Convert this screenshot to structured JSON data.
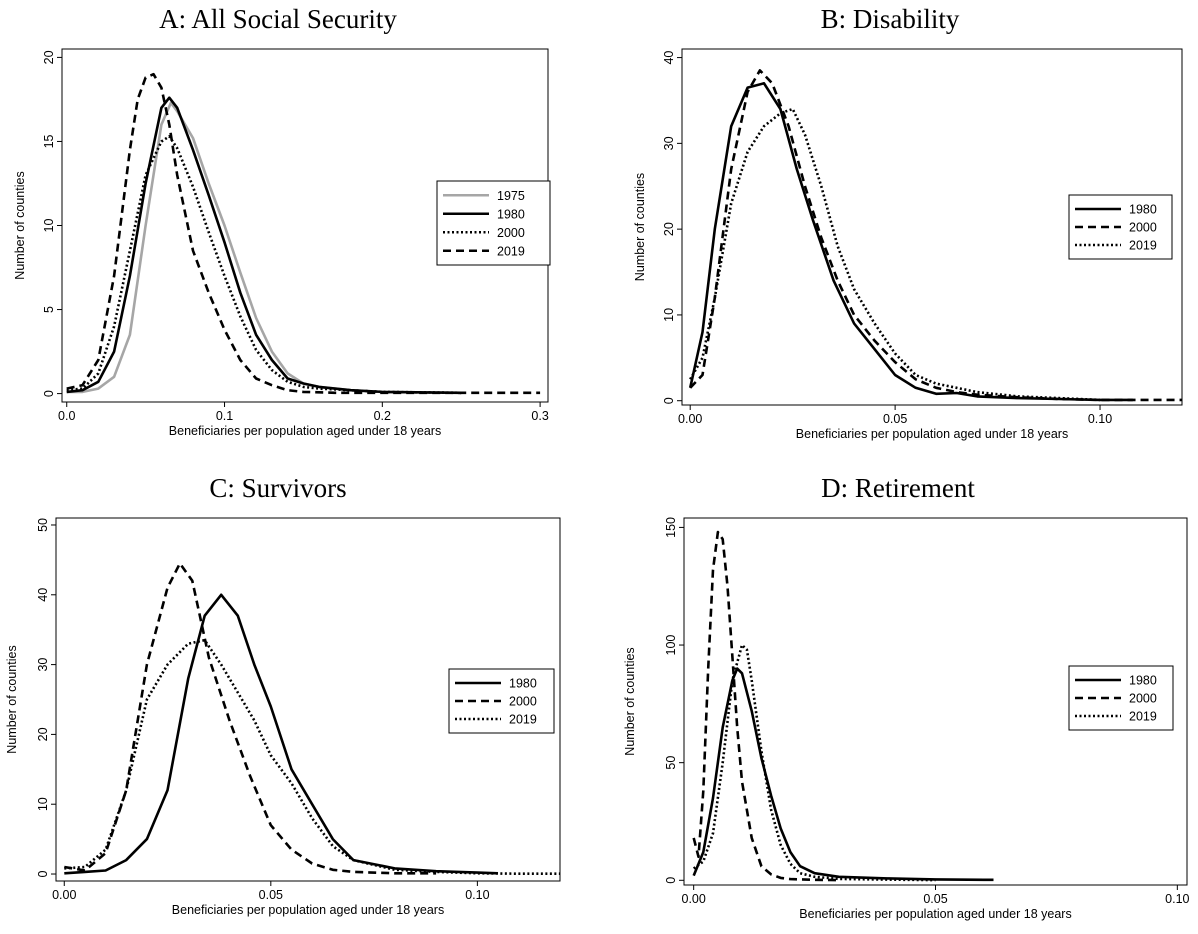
{
  "chart_data": [
    {
      "type": "line",
      "title": "A: All Social Security",
      "xlabel": "Beneficiaries per population aged under 18 years",
      "ylabel": "Number of counties",
      "xlim": [
        -0.003,
        0.305
      ],
      "ylim": [
        -0.5,
        20.5
      ],
      "xticks": [
        0,
        0.1,
        0.2,
        0.3
      ],
      "xtick_labels": [
        "0.0",
        "0.1",
        "0.2",
        "0.3"
      ],
      "yticks": [
        0,
        5,
        10,
        15,
        20
      ],
      "ytick_labels": [
        "0",
        "5",
        "10",
        "15",
        "20"
      ],
      "grid": false,
      "legend": "right",
      "series": [
        {
          "name": "1975",
          "color": "#a6a6a6",
          "dash": "solid",
          "x": [
            0.0,
            0.01,
            0.02,
            0.03,
            0.04,
            0.05,
            0.06,
            0.066,
            0.07,
            0.08,
            0.09,
            0.1,
            0.11,
            0.12,
            0.13,
            0.14,
            0.15,
            0.16,
            0.18,
            0.2,
            0.25
          ],
          "y": [
            0.1,
            0.1,
            0.3,
            1.0,
            3.5,
            10.0,
            16.0,
            17.3,
            16.8,
            15.2,
            12.5,
            10.0,
            7.2,
            4.5,
            2.5,
            1.2,
            0.6,
            0.4,
            0.2,
            0.1,
            0.05
          ]
        },
        {
          "name": "1980",
          "color": "#000000",
          "dash": "solid",
          "x": [
            0.0,
            0.01,
            0.02,
            0.03,
            0.04,
            0.05,
            0.06,
            0.065,
            0.07,
            0.08,
            0.09,
            0.1,
            0.11,
            0.12,
            0.13,
            0.14,
            0.15,
            0.16,
            0.18,
            0.2,
            0.25
          ],
          "y": [
            0.1,
            0.2,
            0.7,
            2.5,
            7.0,
            12.5,
            17.0,
            17.6,
            17.0,
            14.5,
            11.8,
            9.0,
            6.0,
            3.5,
            2.0,
            0.9,
            0.6,
            0.4,
            0.2,
            0.1,
            0.05
          ]
        },
        {
          "name": "2000",
          "color": "#000000",
          "dash": "dotted",
          "x": [
            0.0,
            0.01,
            0.02,
            0.03,
            0.04,
            0.05,
            0.06,
            0.065,
            0.07,
            0.08,
            0.09,
            0.1,
            0.11,
            0.12,
            0.13,
            0.14,
            0.15,
            0.16,
            0.18,
            0.2,
            0.25
          ],
          "y": [
            0.2,
            0.3,
            1.2,
            4.0,
            8.5,
            13.0,
            15.0,
            15.3,
            14.6,
            12.3,
            9.6,
            7.0,
            4.6,
            2.6,
            1.4,
            0.7,
            0.4,
            0.3,
            0.2,
            0.1,
            0.05
          ]
        },
        {
          "name": "2019",
          "color": "#000000",
          "dash": "dashed",
          "x": [
            0.0,
            0.01,
            0.02,
            0.03,
            0.04,
            0.045,
            0.05,
            0.055,
            0.06,
            0.065,
            0.07,
            0.08,
            0.09,
            0.1,
            0.11,
            0.12,
            0.13,
            0.14,
            0.15,
            0.17,
            0.2,
            0.25,
            0.3
          ],
          "y": [
            0.3,
            0.5,
            2.0,
            7.0,
            14.5,
            17.5,
            18.8,
            19.0,
            18.2,
            16.0,
            13.0,
            8.5,
            6.0,
            3.8,
            2.0,
            0.9,
            0.5,
            0.2,
            0.1,
            0.05,
            0.05,
            0.05,
            0.05
          ]
        }
      ]
    },
    {
      "type": "line",
      "title": "B: Disability",
      "xlabel": "Beneficiaries per population aged under 18 years",
      "ylabel": "Number of counties",
      "xlim": [
        -0.002,
        0.12
      ],
      "ylim": [
        -0.5,
        41
      ],
      "xticks": [
        0,
        0.05,
        0.1
      ],
      "xtick_labels": [
        "0.00",
        "0.05",
        "0.10"
      ],
      "yticks": [
        0,
        10,
        20,
        30,
        40
      ],
      "ytick_labels": [
        "0",
        "10",
        "20",
        "30",
        "40"
      ],
      "grid": false,
      "legend": "right",
      "series": [
        {
          "name": "1980",
          "color": "#000000",
          "dash": "solid",
          "x": [
            0.0,
            0.003,
            0.006,
            0.01,
            0.014,
            0.018,
            0.022,
            0.026,
            0.03,
            0.035,
            0.04,
            0.045,
            0.05,
            0.055,
            0.06,
            0.065,
            0.07,
            0.08,
            0.09,
            0.1,
            0.108
          ],
          "y": [
            1.5,
            8.0,
            20.0,
            32.0,
            36.5,
            37.0,
            34.0,
            27.0,
            21.0,
            14.0,
            9.0,
            6.0,
            3.0,
            1.5,
            0.8,
            0.9,
            0.5,
            0.3,
            0.2,
            0.1,
            0.1
          ]
        },
        {
          "name": "2000",
          "color": "#000000",
          "dash": "dashed",
          "x": [
            0.0,
            0.003,
            0.006,
            0.01,
            0.014,
            0.017,
            0.02,
            0.024,
            0.028,
            0.032,
            0.036,
            0.04,
            0.045,
            0.05,
            0.055,
            0.06,
            0.065,
            0.07,
            0.08,
            0.09,
            0.1,
            0.11,
            0.12
          ],
          "y": [
            1.5,
            3.0,
            12.0,
            27.0,
            36.0,
            38.5,
            37.0,
            32.0,
            25.0,
            19.0,
            14.0,
            10.0,
            7.0,
            4.5,
            2.5,
            1.5,
            1.0,
            0.7,
            0.4,
            0.2,
            0.1,
            0.1,
            0.1
          ]
        },
        {
          "name": "2019",
          "color": "#000000",
          "dash": "dotted",
          "x": [
            0.0,
            0.003,
            0.006,
            0.01,
            0.014,
            0.018,
            0.022,
            0.025,
            0.028,
            0.032,
            0.036,
            0.04,
            0.045,
            0.05,
            0.055,
            0.06,
            0.065,
            0.07,
            0.08,
            0.09,
            0.1
          ],
          "y": [
            2.5,
            5.0,
            12.0,
            23.0,
            29.0,
            32.0,
            33.5,
            34.0,
            31.0,
            25.0,
            18.0,
            13.0,
            9.0,
            5.5,
            3.0,
            2.0,
            1.5,
            1.0,
            0.5,
            0.3,
            0.1
          ]
        }
      ]
    },
    {
      "type": "line",
      "title": "C: Survivors",
      "xlabel": "Beneficiaries per population aged under 18 years",
      "ylabel": "Number of counties",
      "xlim": [
        -0.002,
        0.12
      ],
      "ylim": [
        -1,
        51
      ],
      "xticks": [
        0,
        0.05,
        0.1
      ],
      "xtick_labels": [
        "0.00",
        "0.05",
        "0.10"
      ],
      "yticks": [
        0,
        10,
        20,
        30,
        40,
        50
      ],
      "ytick_labels": [
        "0",
        "10",
        "20",
        "30",
        "40",
        "50"
      ],
      "grid": false,
      "legend": "right",
      "series": [
        {
          "name": "1980",
          "color": "#000000",
          "dash": "solid",
          "x": [
            0.0,
            0.005,
            0.01,
            0.015,
            0.02,
            0.025,
            0.03,
            0.034,
            0.038,
            0.042,
            0.046,
            0.05,
            0.055,
            0.06,
            0.065,
            0.07,
            0.08,
            0.09,
            0.1,
            0.105
          ],
          "y": [
            0.1,
            0.3,
            0.5,
            2.0,
            5.0,
            12.0,
            28.0,
            37.0,
            40.0,
            37.0,
            30.0,
            24.0,
            15.0,
            10.0,
            5.0,
            2.0,
            0.8,
            0.4,
            0.2,
            0.1
          ]
        },
        {
          "name": "2000",
          "color": "#000000",
          "dash": "dashed",
          "x": [
            0.0,
            0.005,
            0.01,
            0.015,
            0.02,
            0.025,
            0.028,
            0.031,
            0.035,
            0.04,
            0.045,
            0.05,
            0.055,
            0.06,
            0.065,
            0.07,
            0.08,
            0.09
          ],
          "y": [
            1.0,
            0.5,
            3.0,
            12.0,
            30.0,
            41.0,
            44.5,
            42.0,
            31.0,
            22.0,
            14.0,
            7.0,
            3.5,
            1.5,
            0.6,
            0.3,
            0.1,
            0.1
          ]
        },
        {
          "name": "2019",
          "color": "#000000",
          "dash": "dotted",
          "x": [
            0.0,
            0.005,
            0.01,
            0.015,
            0.02,
            0.025,
            0.03,
            0.034,
            0.038,
            0.042,
            0.046,
            0.05,
            0.055,
            0.06,
            0.065,
            0.07,
            0.08,
            0.09,
            0.1,
            0.11,
            0.12
          ],
          "y": [
            0.8,
            1.0,
            3.5,
            12.0,
            25.0,
            30.0,
            33.0,
            33.5,
            30.0,
            26.0,
            22.0,
            17.0,
            13.0,
            8.0,
            4.0,
            2.0,
            0.6,
            0.3,
            0.1,
            0.05,
            0.05
          ]
        }
      ]
    },
    {
      "type": "line",
      "title": "D: Retirement",
      "xlabel": "Beneficiaries per population aged under 18 years",
      "ylabel": "Number of counties",
      "xlim": [
        -0.002,
        0.102
      ],
      "ylim": [
        -2,
        154
      ],
      "xticks": [
        0,
        0.05,
        0.1
      ],
      "xtick_labels": [
        "0.00",
        "0.05",
        "0.10"
      ],
      "yticks": [
        0,
        50,
        100,
        150
      ],
      "ytick_labels": [
        "0",
        "50",
        "100",
        "150"
      ],
      "grid": false,
      "legend": "right",
      "series": [
        {
          "name": "1980",
          "color": "#000000",
          "dash": "solid",
          "x": [
            0.0,
            0.002,
            0.004,
            0.006,
            0.008,
            0.009,
            0.01,
            0.012,
            0.014,
            0.016,
            0.018,
            0.02,
            0.022,
            0.025,
            0.03,
            0.04,
            0.05,
            0.06,
            0.062
          ],
          "y": [
            2.0,
            12.0,
            35.0,
            65.0,
            85.0,
            90.0,
            88.0,
            72.0,
            52.0,
            36.0,
            22.0,
            12.0,
            6.0,
            3.0,
            1.5,
            0.8,
            0.4,
            0.2,
            0.2
          ]
        },
        {
          "name": "2000",
          "color": "#000000",
          "dash": "dashed",
          "x": [
            0.0,
            0.001,
            0.002,
            0.003,
            0.004,
            0.005,
            0.006,
            0.007,
            0.008,
            0.009,
            0.01,
            0.012,
            0.014,
            0.016,
            0.018,
            0.02,
            0.025,
            0.03
          ],
          "y": [
            18.0,
            10.0,
            38.0,
            90.0,
            132.0,
            148.0,
            145.0,
            125.0,
            95.0,
            65.0,
            42.0,
            18.0,
            6.0,
            2.5,
            1.0,
            0.5,
            0.2,
            0.1
          ]
        },
        {
          "name": "2019",
          "color": "#000000",
          "dash": "dotted",
          "x": [
            0.0,
            0.002,
            0.004,
            0.006,
            0.008,
            0.01,
            0.011,
            0.012,
            0.014,
            0.016,
            0.018,
            0.02,
            0.022,
            0.025,
            0.03,
            0.04,
            0.05
          ],
          "y": [
            5.0,
            8.0,
            20.0,
            50.0,
            85.0,
            100.0,
            98.0,
            85.0,
            55.0,
            30.0,
            15.0,
            7.0,
            3.0,
            1.5,
            0.6,
            0.3,
            0.1
          ]
        }
      ]
    }
  ]
}
